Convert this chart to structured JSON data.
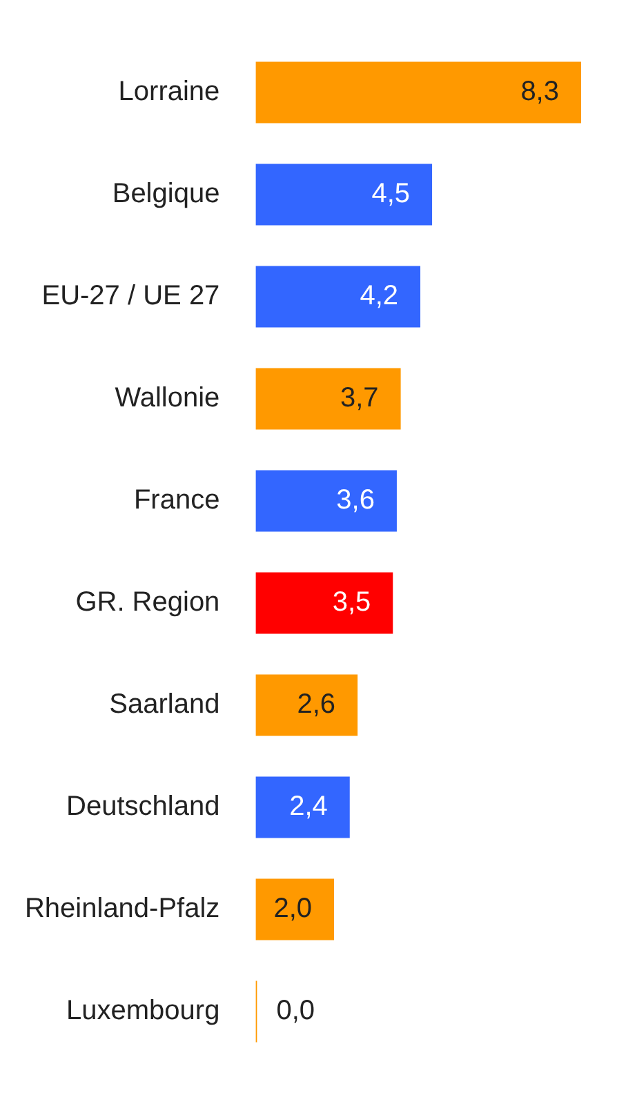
{
  "chart_data": {
    "type": "bar",
    "orientation": "horizontal",
    "categories": [
      "Lorraine",
      "Belgique",
      "EU-27 / UE 27",
      "Wallonie",
      "France",
      "GR. Region",
      "Saarland",
      "Deutschland",
      "Rheinland-Pfalz",
      "Luxembourg"
    ],
    "values": [
      8.3,
      4.5,
      4.2,
      3.7,
      3.6,
      3.5,
      2.6,
      2.4,
      2.0,
      0.0
    ],
    "colors": [
      "#ff9900",
      "#3366ff",
      "#3366ff",
      "#ff9900",
      "#3366ff",
      "#ff0000",
      "#ff9900",
      "#3366ff",
      "#ff9900",
      "#ff9900"
    ],
    "value_labels": [
      "8,3",
      "4,5",
      "4,2",
      "3,7",
      "3,6",
      "3,5",
      "2,6",
      "2,4",
      "2,0",
      "0,0"
    ]
  }
}
